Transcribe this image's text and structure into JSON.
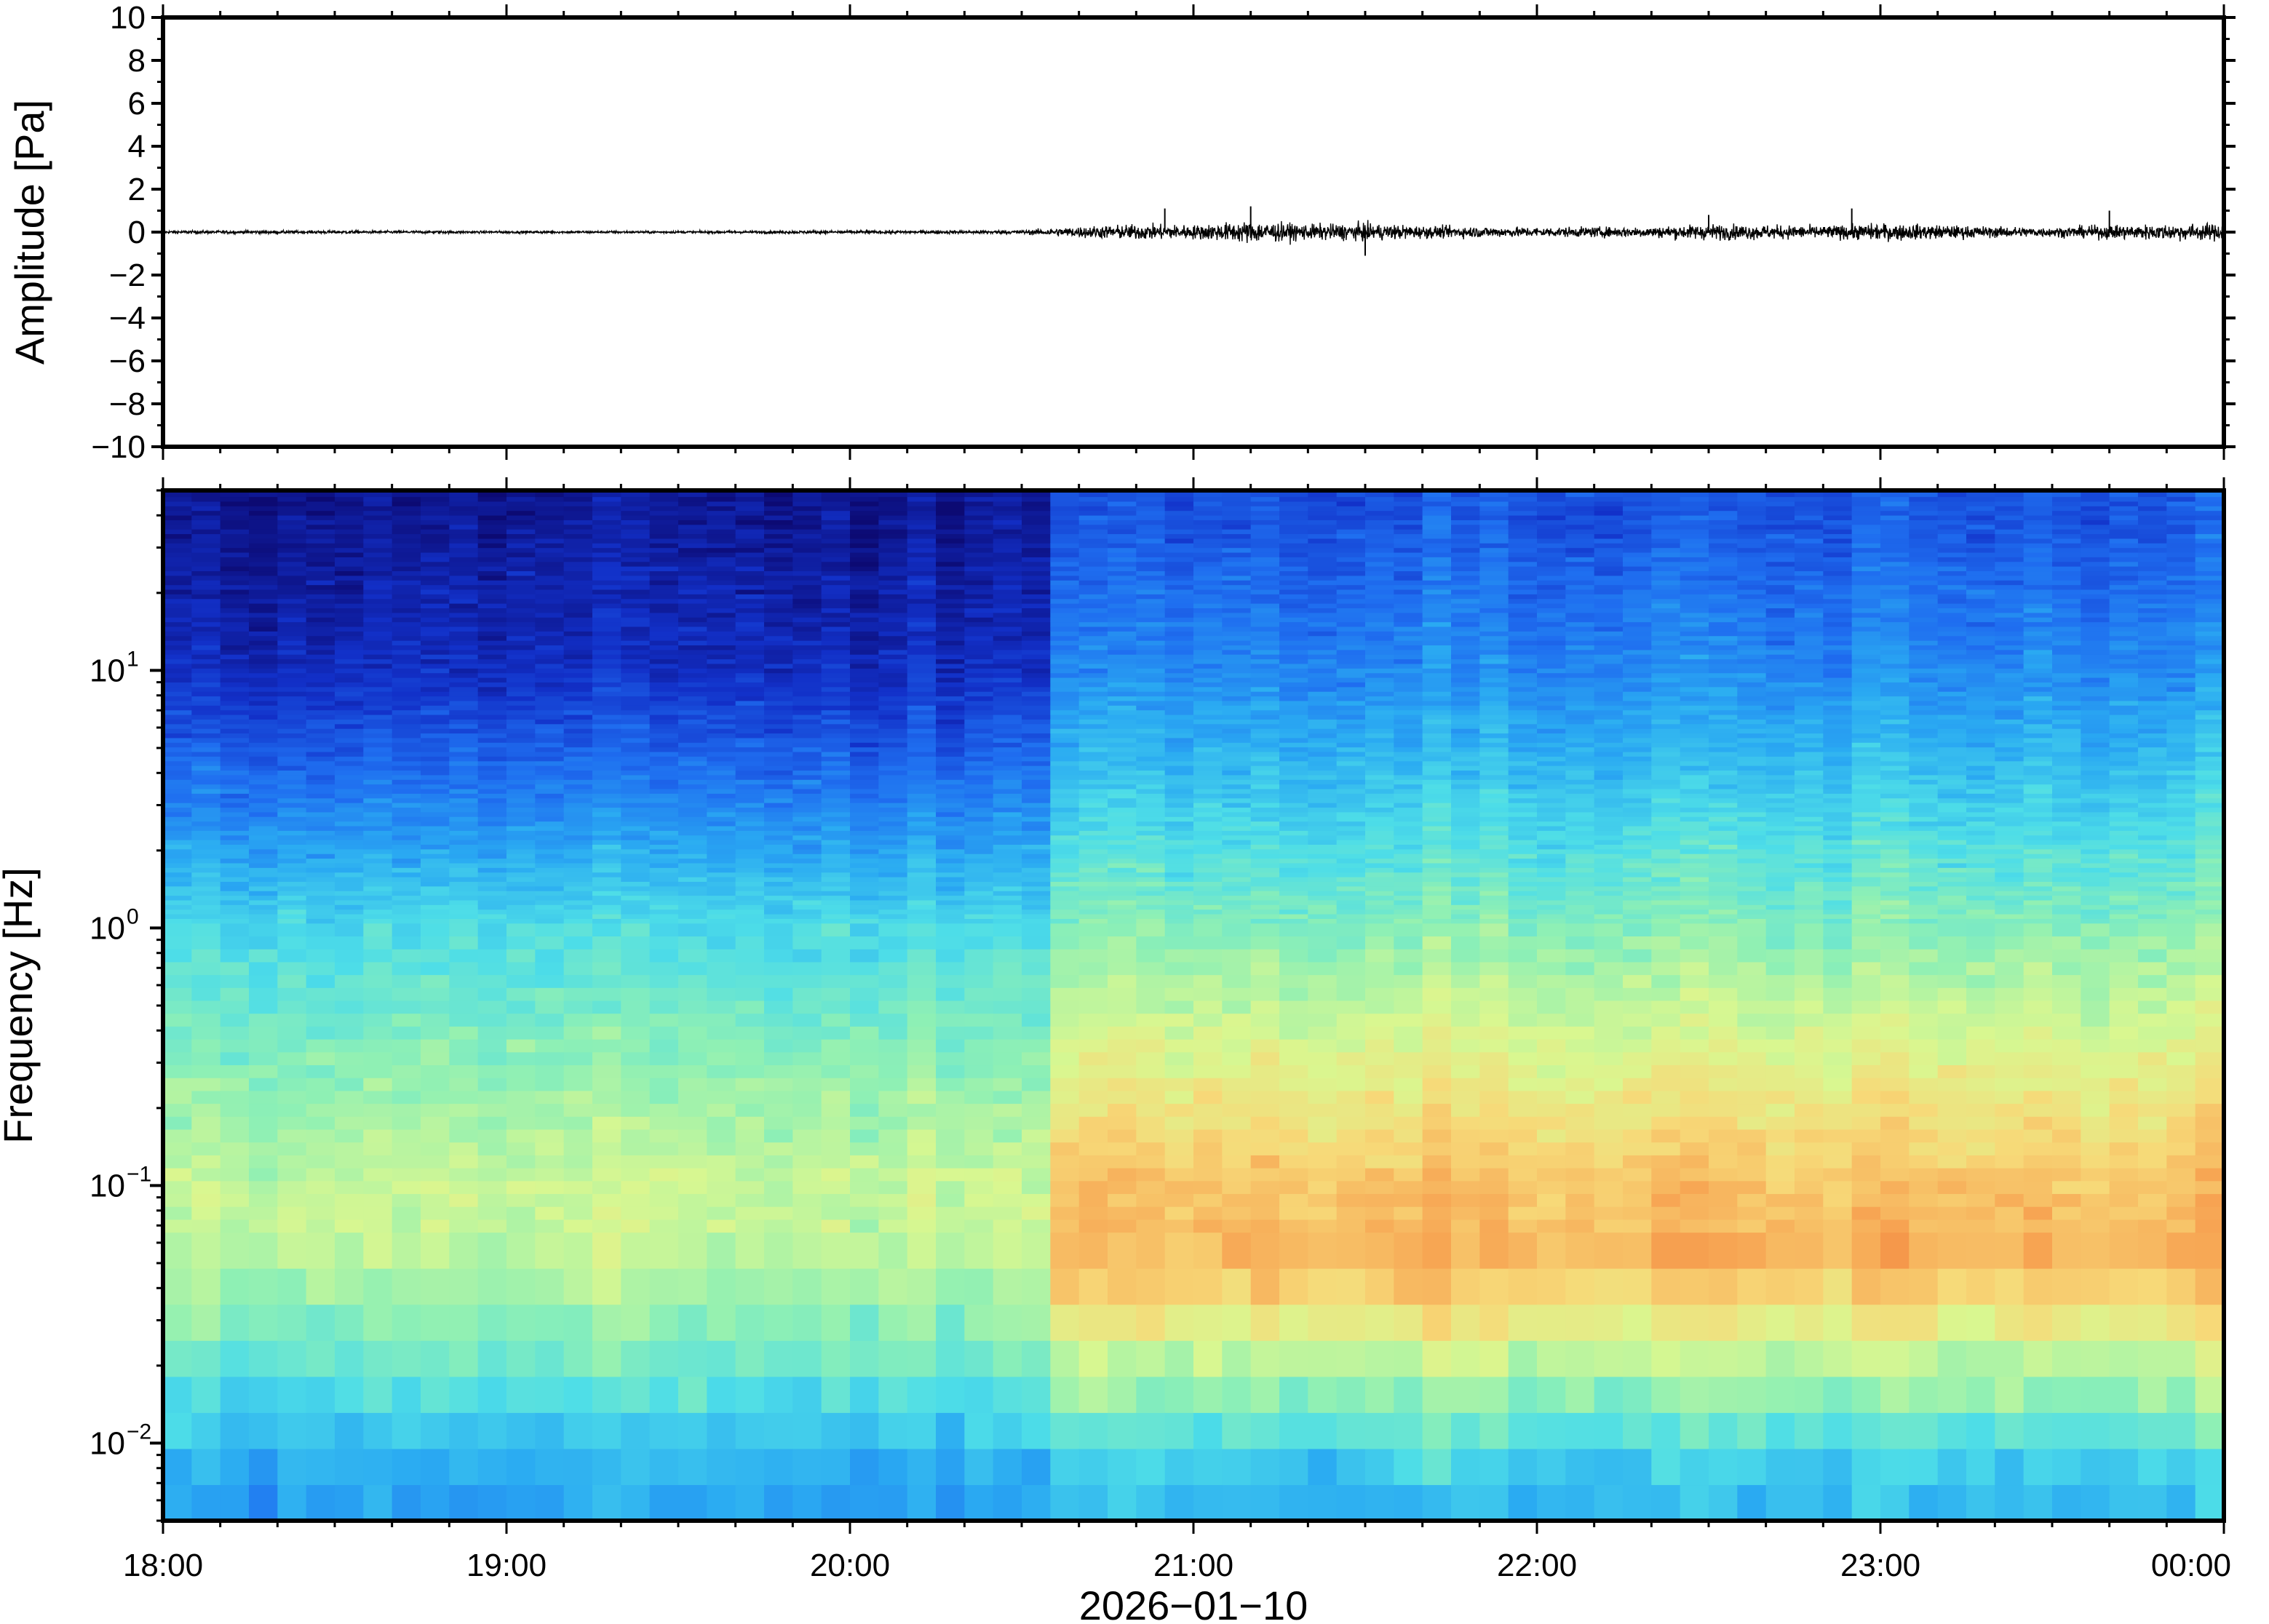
{
  "chart_data": [
    {
      "type": "line",
      "panel": "waveform",
      "ylabel": "Amplitude [Pa]",
      "ylim": [
        -10,
        10
      ],
      "yticks": [
        10,
        8,
        6,
        4,
        2,
        0,
        -2,
        -4,
        -6,
        -8,
        -10
      ],
      "ytick_labels": [
        "10",
        "8",
        "6",
        "4",
        "2",
        "0",
        "−2",
        "−4",
        "−6",
        "−8",
        "−10"
      ],
      "xlim": [
        "18:00",
        "00:00"
      ],
      "line_color": "#000000",
      "envelope": {
        "x": [
          "18:00",
          "18:30",
          "19:00",
          "19:30",
          "20:00",
          "20:30",
          "20:40",
          "20:50",
          "21:00",
          "21:10",
          "21:20",
          "21:30",
          "21:40",
          "22:00",
          "22:20",
          "22:30",
          "22:50",
          "23:00",
          "23:20",
          "23:30",
          "23:40",
          "23:50",
          "00:00"
        ],
        "amplitude": [
          0.1,
          0.1,
          0.08,
          0.08,
          0.1,
          0.12,
          0.35,
          0.5,
          0.45,
          0.7,
          0.5,
          0.55,
          0.4,
          0.3,
          0.35,
          0.5,
          0.4,
          0.55,
          0.35,
          0.3,
          0.45,
          0.5,
          0.55
        ]
      },
      "peak_events": [
        {
          "x": "20:55",
          "value": 1.1
        },
        {
          "x": "21:10",
          "value": 1.2
        },
        {
          "x": "21:30",
          "value": -1.1
        },
        {
          "x": "22:30",
          "value": 0.8
        },
        {
          "x": "22:55",
          "value": 1.1
        },
        {
          "x": "23:40",
          "value": 1.0
        }
      ]
    },
    {
      "type": "heatmap",
      "panel": "spectrogram",
      "ylabel": "Frequency [Hz]",
      "yscale": "log",
      "ylim": [
        0.005,
        50
      ],
      "yticks": [
        10,
        1,
        0.1,
        0.01
      ],
      "ytick_labels": [
        {
          "base": "10",
          "exp": "1"
        },
        {
          "base": "10",
          "exp": "0"
        },
        {
          "base": "10",
          "exp": "−1"
        },
        {
          "base": "10",
          "exp": "−2"
        }
      ],
      "xlabel": "2026−01−10",
      "xticks": [
        "18:00",
        "19:00",
        "20:00",
        "21:00",
        "22:00",
        "23:00",
        "00:00"
      ],
      "colormap": [
        "#0c0a73",
        "#1230c8",
        "#1f6ef0",
        "#2aaaf2",
        "#4ddde8",
        "#8ff0b4",
        "#d9f790",
        "#f7d978",
        "#f7a553",
        "#f07a3a"
      ],
      "regime_change": "20:33",
      "quiet_profile": [
        {
          "freq_hz": 0.007,
          "level": 0.32
        },
        {
          "freq_hz": 0.02,
          "level": 0.5
        },
        {
          "freq_hz": 0.05,
          "level": 0.62
        },
        {
          "freq_hz": 0.1,
          "level": 0.64
        },
        {
          "freq_hz": 0.3,
          "level": 0.55
        },
        {
          "freq_hz": 1,
          "level": 0.44
        },
        {
          "freq_hz": 3,
          "level": 0.26
        },
        {
          "freq_hz": 10,
          "level": 0.1
        },
        {
          "freq_hz": 40,
          "level": 0.04
        }
      ],
      "active_profile": [
        {
          "freq_hz": 0.007,
          "level": 0.38
        },
        {
          "freq_hz": 0.02,
          "level": 0.62
        },
        {
          "freq_hz": 0.05,
          "level": 0.86
        },
        {
          "freq_hz": 0.1,
          "level": 0.83
        },
        {
          "freq_hz": 0.3,
          "level": 0.7
        },
        {
          "freq_hz": 1,
          "level": 0.55
        },
        {
          "freq_hz": 3,
          "level": 0.42
        },
        {
          "freq_hz": 10,
          "level": 0.28
        },
        {
          "freq_hz": 40,
          "level": 0.18
        }
      ]
    }
  ]
}
